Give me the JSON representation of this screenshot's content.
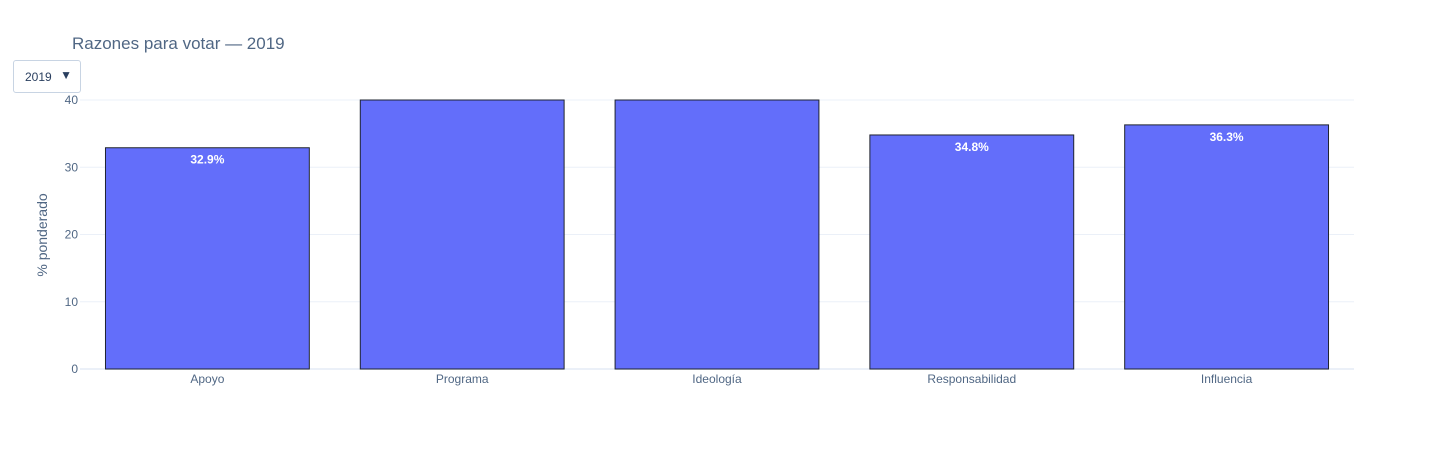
{
  "title": "Razones para votar — 2019",
  "dropdown": {
    "selected": "2019",
    "caret": "▼"
  },
  "chart_data": {
    "type": "bar",
    "title": "Razones para votar — 2019",
    "xlabel": "",
    "ylabel": "% ponderado",
    "ylim": [
      0,
      40
    ],
    "yticks": [
      0,
      10,
      20,
      30,
      40
    ],
    "grid": true,
    "categories": [
      "Apoyo",
      "Programa",
      "Ideología",
      "Responsabilidad",
      "Influencia"
    ],
    "values": [
      32.9,
      40,
      40,
      34.8,
      36.3
    ],
    "labels": [
      "32.9%",
      "",
      "",
      "34.8%",
      "36.3%"
    ],
    "bar_color": "#636efa",
    "bar_outline": "#1f2430"
  }
}
